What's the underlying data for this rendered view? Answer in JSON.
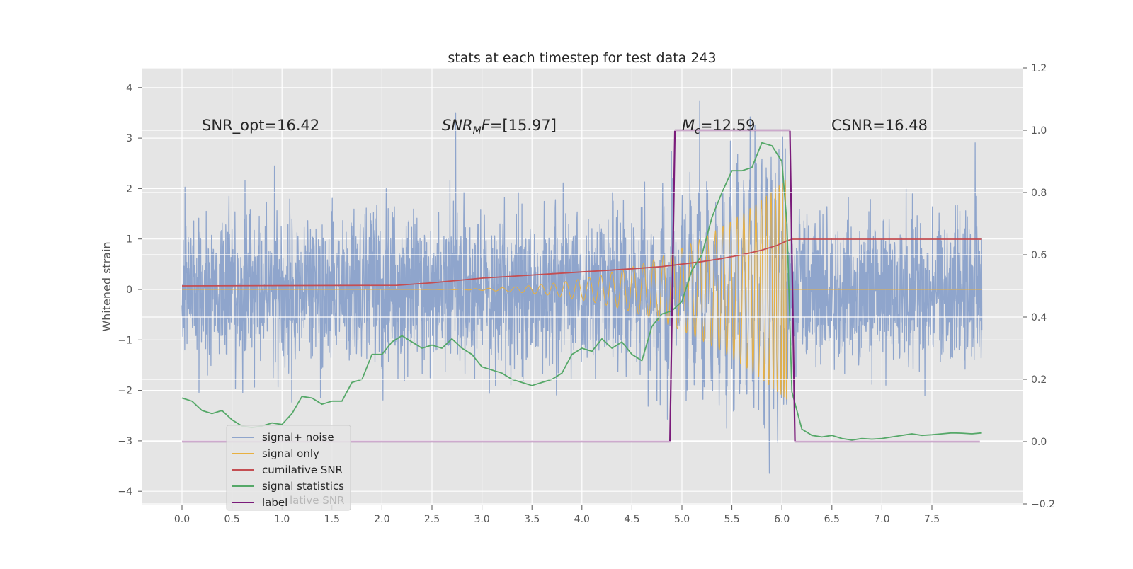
{
  "chart_data": {
    "type": "line",
    "title": "stats at each timestep for test data 243",
    "ylabel": "Whitened strain",
    "xlim": [
      -0.4,
      8.4
    ],
    "ylim": [
      -4.25,
      4.4
    ],
    "y2lim": [
      -0.2,
      1.2
    ],
    "grid": true,
    "legend_position": "lower-left",
    "x_ticks": [
      "0.0",
      "0.5",
      "1.0",
      "1.5",
      "2.0",
      "2.5",
      "3.0",
      "3.5",
      "4.0",
      "4.5",
      "5.0",
      "5.5",
      "6.0",
      "6.5",
      "7.0",
      "7.5"
    ],
    "y_ticks": [
      "4",
      "3",
      "2",
      "1",
      "0",
      "−1",
      "−2",
      "−3",
      "−4"
    ],
    "y2_ticks": [
      "1.2",
      "1.0",
      "0.8",
      "0.6",
      "0.4",
      "0.2",
      "0.0",
      "−0.2"
    ],
    "annotations": {
      "snr_opt": "SNR_opt=16.42",
      "snr_mf_name": "SNR",
      "snr_mf_sub": "M",
      "snr_mf_rest": "F=[15.97]",
      "mc_name": "M",
      "mc_sub": "c",
      "mc_rest": "=12.59",
      "csnr": "CSNR=16.48"
    },
    "legend": [
      "signal+ noise",
      "signal only",
      "cumilative SNR",
      "signal statistics",
      "label"
    ],
    "legend_ghost_text": "lative SNR",
    "colors": {
      "noise": "#8fa5cc",
      "signal": "#e8b040",
      "snr": "#c44e52",
      "stats": "#55a868",
      "label": "#7a1b7a",
      "background": "#e5e5e5",
      "grid": "#ffffff"
    },
    "series": [
      {
        "name": "signal+ noise",
        "axis": "left",
        "description_values": "whitened noisy strain, roughly within [-3.9, 4.1], 0 to 8 s"
      },
      {
        "name": "signal only",
        "axis": "left",
        "chirp_start": 2.1,
        "merger": 6.05,
        "peak_amplitude": 2.2
      },
      {
        "name": "cumilative SNR",
        "axis": "right",
        "x": [
          0.0,
          2.15,
          2.5,
          3.0,
          3.5,
          4.0,
          4.5,
          4.8,
          5.0,
          5.2,
          5.4,
          5.6,
          5.8,
          5.95,
          6.05,
          6.1,
          8.0
        ],
        "values": [
          0.5,
          0.502,
          0.51,
          0.525,
          0.535,
          0.545,
          0.555,
          0.562,
          0.57,
          0.578,
          0.588,
          0.6,
          0.615,
          0.63,
          0.645,
          0.65,
          0.65
        ]
      },
      {
        "name": "signal statistics",
        "axis": "right",
        "x": [
          0.0,
          0.1,
          0.2,
          0.3,
          0.4,
          0.5,
          0.6,
          0.7,
          0.8,
          0.9,
          1.0,
          1.1,
          1.2,
          1.3,
          1.4,
          1.5,
          1.6,
          1.7,
          1.8,
          1.9,
          2.0,
          2.1,
          2.2,
          2.3,
          2.4,
          2.5,
          2.6,
          2.7,
          2.8,
          2.9,
          3.0,
          3.1,
          3.2,
          3.3,
          3.4,
          3.5,
          3.6,
          3.7,
          3.8,
          3.9,
          4.0,
          4.1,
          4.2,
          4.3,
          4.4,
          4.5,
          4.6,
          4.7,
          4.8,
          4.9,
          5.0,
          5.1,
          5.2,
          5.3,
          5.4,
          5.5,
          5.6,
          5.7,
          5.8,
          5.9,
          6.0,
          6.05,
          6.1,
          6.2,
          6.3,
          6.4,
          6.5,
          6.6,
          6.7,
          6.8,
          6.9,
          7.0,
          7.1,
          7.2,
          7.3,
          7.4,
          7.5,
          7.6,
          7.7,
          7.8,
          7.9,
          8.0
        ],
        "values": [
          0.14,
          0.13,
          0.1,
          0.09,
          0.1,
          0.07,
          0.05,
          0.045,
          0.05,
          0.06,
          0.055,
          0.09,
          0.145,
          0.14,
          0.12,
          0.13,
          0.13,
          0.19,
          0.2,
          0.28,
          0.28,
          0.32,
          0.34,
          0.32,
          0.3,
          0.31,
          0.3,
          0.33,
          0.3,
          0.28,
          0.24,
          0.23,
          0.22,
          0.2,
          0.19,
          0.18,
          0.19,
          0.2,
          0.22,
          0.28,
          0.3,
          0.29,
          0.33,
          0.3,
          0.32,
          0.28,
          0.26,
          0.37,
          0.41,
          0.42,
          0.45,
          0.55,
          0.6,
          0.72,
          0.8,
          0.87,
          0.87,
          0.88,
          0.96,
          0.95,
          0.9,
          0.7,
          0.16,
          0.04,
          0.02,
          0.015,
          0.02,
          0.01,
          0.005,
          0.01,
          0.008,
          0.01,
          0.015,
          0.02,
          0.025,
          0.02,
          0.022,
          0.025,
          0.028,
          0.027,
          0.025,
          0.028
        ]
      },
      {
        "name": "label",
        "axis": "right",
        "x": [
          0.0,
          4.88,
          4.93,
          6.08,
          6.13,
          7.98
        ],
        "values": [
          0.0,
          0.0,
          1.0,
          1.0,
          0.0,
          0.0
        ]
      }
    ]
  }
}
